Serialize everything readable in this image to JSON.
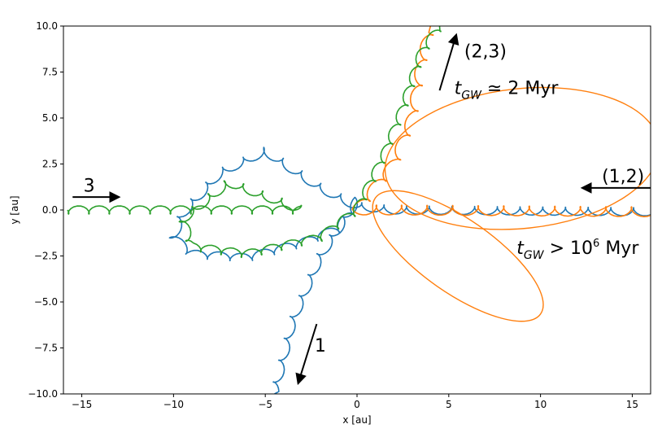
{
  "chart_data": {
    "type": "line",
    "title": "",
    "xlabel": "x [au]",
    "ylabel": "y [au]",
    "xlim": [
      -16,
      16
    ],
    "ylim": [
      -10,
      10
    ],
    "xticks": [
      -15,
      -10,
      -5,
      0,
      5,
      10,
      15
    ],
    "yticks": [
      -10.0,
      -7.5,
      -5.0,
      -2.5,
      0.0,
      2.5,
      5.0,
      7.5,
      10.0
    ],
    "xtick_labels": [
      "−15",
      "−10",
      "−5",
      "0",
      "5",
      "10",
      "15"
    ],
    "ytick_labels": [
      "−10.0",
      "−7.5",
      "−5.0",
      "−2.5",
      "0.0",
      "2.5",
      "5.0",
      "7.5",
      "10.0"
    ],
    "grid": false,
    "legend": "none",
    "colors": {
      "body_1": "#1f77b4",
      "body_2": "#ff7f0e",
      "body_3": "#2ca02c",
      "arrows": "#000000"
    },
    "series": [
      {
        "color": "#1f77b4",
        "shape": "wobbly path from right entering, looping cluster around x=-9..0, then escaping downwards",
        "guide": [
          [
            16,
            -0.1
          ],
          [
            2,
            0.0
          ],
          [
            0,
            0.2
          ],
          [
            -2,
            1.2
          ],
          [
            -5,
            3.2
          ],
          [
            -7.5,
            2.0
          ],
          [
            -9.5,
            -0.2
          ],
          [
            -10,
            -1.5
          ],
          [
            -9,
            -2.4
          ],
          [
            -6,
            -2.6
          ],
          [
            -3,
            -1.8
          ],
          [
            -1,
            -1.0
          ],
          [
            0,
            0.5
          ],
          [
            -2,
            -2.5
          ],
          [
            -3.5,
            -6.0
          ],
          [
            -4.5,
            -10.0
          ]
        ]
      },
      {
        "color": "#ff7f0e",
        "shape": "tight loops entering from right, large ellipses around origin, escaping upward to top",
        "guide": [
          [
            16,
            -0.1
          ],
          [
            2,
            0.0
          ],
          [
            0,
            0.0
          ],
          [
            2,
            2.5
          ],
          [
            3,
            5.0
          ],
          [
            3.5,
            8.0
          ],
          [
            4,
            10.0
          ]
        ]
      },
      {
        "color": "#2ca02c",
        "shape": "straight entry from left at y=0, looping cluster near x=-9..0, escaping upward to top",
        "guide": [
          [
            -16,
            0.0
          ],
          [
            -3,
            0.0
          ],
          [
            -7,
            1.5
          ],
          [
            -9.5,
            -0.5
          ],
          [
            -9,
            -2.0
          ],
          [
            -6,
            -2.4
          ],
          [
            -2,
            -1.5
          ],
          [
            0,
            0.0
          ],
          [
            1.5,
            3.0
          ],
          [
            2.5,
            5.5
          ],
          [
            3.5,
            8.5
          ],
          [
            4.5,
            10.0
          ]
        ]
      }
    ],
    "annotations": [
      {
        "id": "label_3",
        "text": "3",
        "x": -14.6,
        "y": 1.0
      },
      {
        "id": "label_12",
        "text": "(1,2)",
        "x": 14.5,
        "y": 1.5
      },
      {
        "id": "label_23",
        "text": "(2,3)",
        "x": 7.0,
        "y": 8.3
      },
      {
        "id": "label_1",
        "text": "1",
        "x": -2.0,
        "y": -7.7
      }
    ],
    "math_annotations": [
      {
        "id": "tgw_23",
        "base": "t",
        "sub": "GW",
        "rest": " ≃ 2 Myr",
        "x": 5.3,
        "y": 6.3
      },
      {
        "id": "tgw_12",
        "base": "t",
        "sub": "GW",
        "rest_before_sup": " > 10",
        "sup": "6",
        "rest_after_sup": " Myr",
        "x": 8.7,
        "y": -2.4
      }
    ],
    "arrows": [
      {
        "id": "arrow_3",
        "from": [
          -15.5,
          0.7
        ],
        "to": [
          -13.0,
          0.7
        ]
      },
      {
        "id": "arrow_12",
        "from": [
          16.0,
          1.2
        ],
        "to": [
          12.3,
          1.2
        ]
      },
      {
        "id": "arrow_23",
        "from": [
          4.5,
          6.5
        ],
        "to": [
          5.4,
          9.5
        ]
      },
      {
        "id": "arrow_1",
        "from": [
          -2.2,
          -6.2
        ],
        "to": [
          -3.2,
          -9.4
        ]
      }
    ]
  }
}
